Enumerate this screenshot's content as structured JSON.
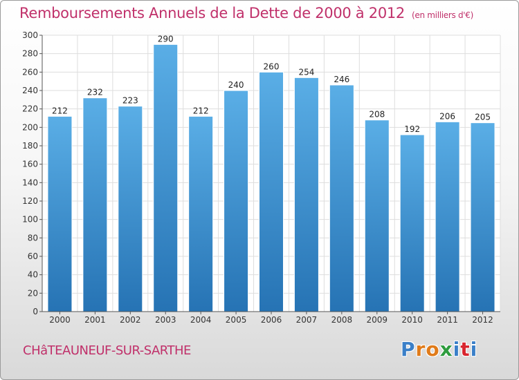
{
  "title": "Remboursements Annuels de la Dette de 2000 à 2012",
  "subtitle": "(en milliers d'€)",
  "town": "CHâTEAUNEUF-SUR-SARTHE",
  "logo": {
    "letters": [
      "P",
      "r",
      "o",
      "x",
      "i",
      "t",
      "i"
    ],
    "colors": [
      "#3a7fc8",
      "#e07b1a",
      "#e07b1a",
      "#2e9c3e",
      "#3a7fc8",
      "#d8262f",
      "#3a7fc8"
    ]
  },
  "colors": {
    "bar_light": "#5aaee6",
    "bar_dark": "#2673b4",
    "grid": "#dddddd",
    "title": "#c0306a"
  },
  "chart_data": {
    "type": "bar",
    "title": "Remboursements Annuels de la Dette de 2000 à 2012",
    "subtitle": "(en milliers d'€)",
    "categories": [
      "2000",
      "2001",
      "2002",
      "2003",
      "2004",
      "2005",
      "2006",
      "2007",
      "2008",
      "2009",
      "2010",
      "2011",
      "2012"
    ],
    "values": [
      212,
      232,
      223,
      290,
      212,
      240,
      260,
      254,
      246,
      208,
      192,
      206,
      205
    ],
    "ylim": [
      0,
      300
    ],
    "yticks": [
      0,
      20,
      40,
      60,
      80,
      100,
      120,
      140,
      160,
      180,
      200,
      220,
      240,
      260,
      280,
      300
    ],
    "grid": true,
    "legend": "none"
  }
}
